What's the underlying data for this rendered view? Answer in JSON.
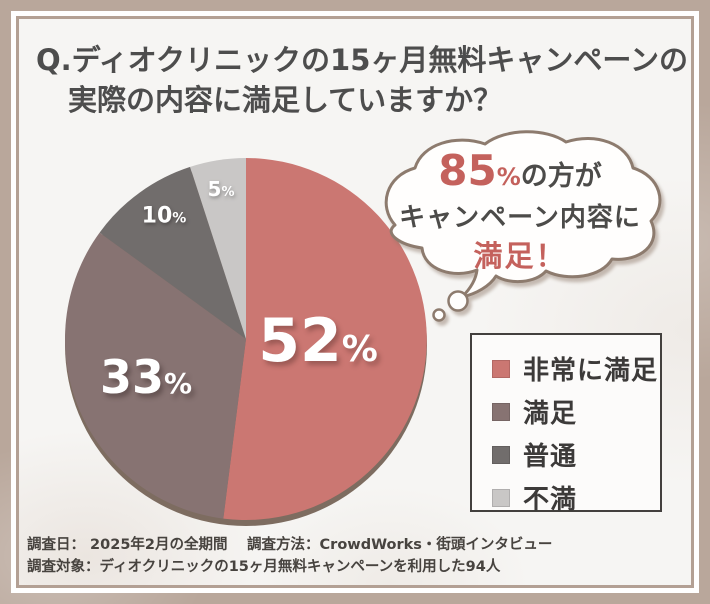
{
  "colors": {
    "frame_bg": "#b9a79b",
    "card_bg": "#f6f5f3",
    "accent_red": "#c4615c",
    "text_dark": "#4d4d4d",
    "pie_rim": "#7d6c60",
    "bubble_border": "#8d7b6e"
  },
  "title": {
    "line1": "Q.ディオクリニックの15ヶ月無料キャンペーンの",
    "line2": "実際の内容に満足していますか？"
  },
  "chart_data": {
    "type": "pie",
    "title": "ディオクリニックの15ヶ月無料キャンペーンの実際の内容に満足していますか？",
    "categories": [
      "非常に満足",
      "満足",
      "普通",
      "不満"
    ],
    "values": [
      52,
      33,
      10,
      5
    ],
    "unit": "%",
    "colors": [
      "#cb7772",
      "#877372",
      "#716d6c",
      "#c9c7c6"
    ],
    "start_angle_deg": 0,
    "direction": "clockwise",
    "legend_position": "right",
    "annotation": "85%の方がキャンペーン内容に満足！"
  },
  "bubble": {
    "stat_value": "85",
    "stat_unit": "%",
    "line1_rest": "の方が",
    "line2": "キャンペーン内容に",
    "line3": "満足！"
  },
  "legend": {
    "items": [
      {
        "label": "非常に満足"
      },
      {
        "label": "満足"
      },
      {
        "label": "普通"
      },
      {
        "label": "不満"
      }
    ]
  },
  "footer": {
    "line1": "調査日： 2025年2月の全期間　 調査方法：CrowdWorks・街頭インタビュー",
    "line2": "調査対象：ディオクリニックの15ヶ月無料キャンペーンを利用した94人"
  }
}
